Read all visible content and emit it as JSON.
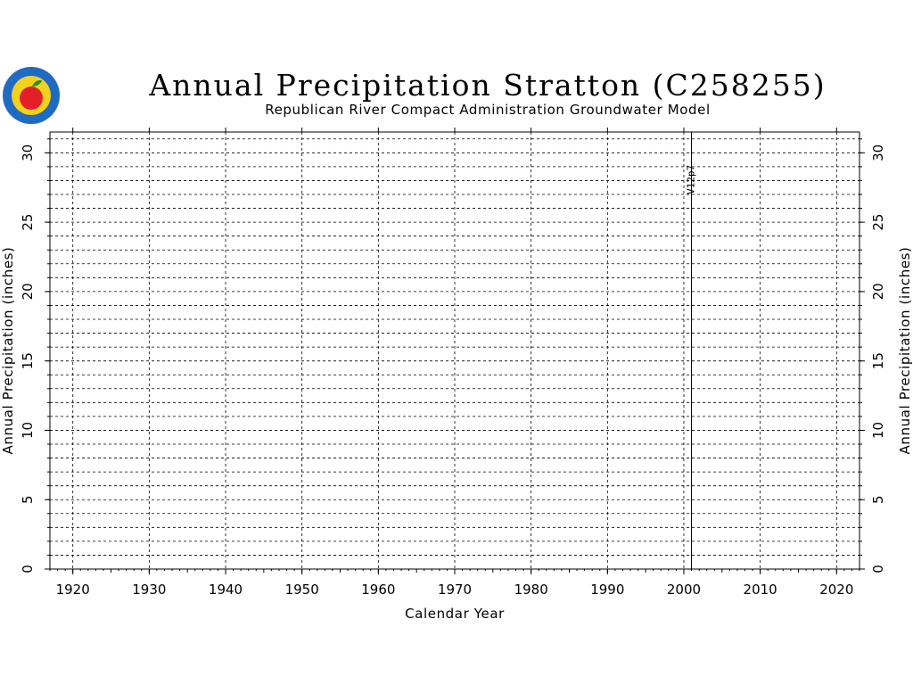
{
  "header": {
    "title": "Annual Precipitation Stratton (C258255)",
    "subtitle": "Republican River Compact Administration Groundwater Model"
  },
  "logo": {
    "icon": "apple-seal-logo",
    "colors": {
      "ring": "#1f6bc4",
      "inner": "#f2d21b",
      "apple": "#e3202a",
      "leaf": "#2e8b2e"
    }
  },
  "chart_data": {
    "type": "line",
    "style": "step",
    "title": "Annual Precipitation Stratton (C258255)",
    "subtitle": "Republican River Compact Administration Groundwater Model",
    "xlabel": "Calendar Year",
    "ylabel_left": "Annual Precipitation (inches)",
    "ylabel_right": "Annual Precipitation (inches)",
    "xlim": [
      1917,
      2023
    ],
    "ylim": [
      0,
      31.5
    ],
    "x_ticks": [
      "1920",
      "1930",
      "1940",
      "1950",
      "1960",
      "1970",
      "1980",
      "1990",
      "2000",
      "2010",
      "2020"
    ],
    "y_ticks": [
      "0",
      "5",
      "10",
      "15",
      "20",
      "25",
      "30"
    ],
    "grid": true,
    "series": [
      {
        "color": "#0000cc",
        "x_start": 1918,
        "values": []
      }
    ],
    "annotations": [
      {
        "x": 2001,
        "label": "V12p7"
      }
    ]
  }
}
